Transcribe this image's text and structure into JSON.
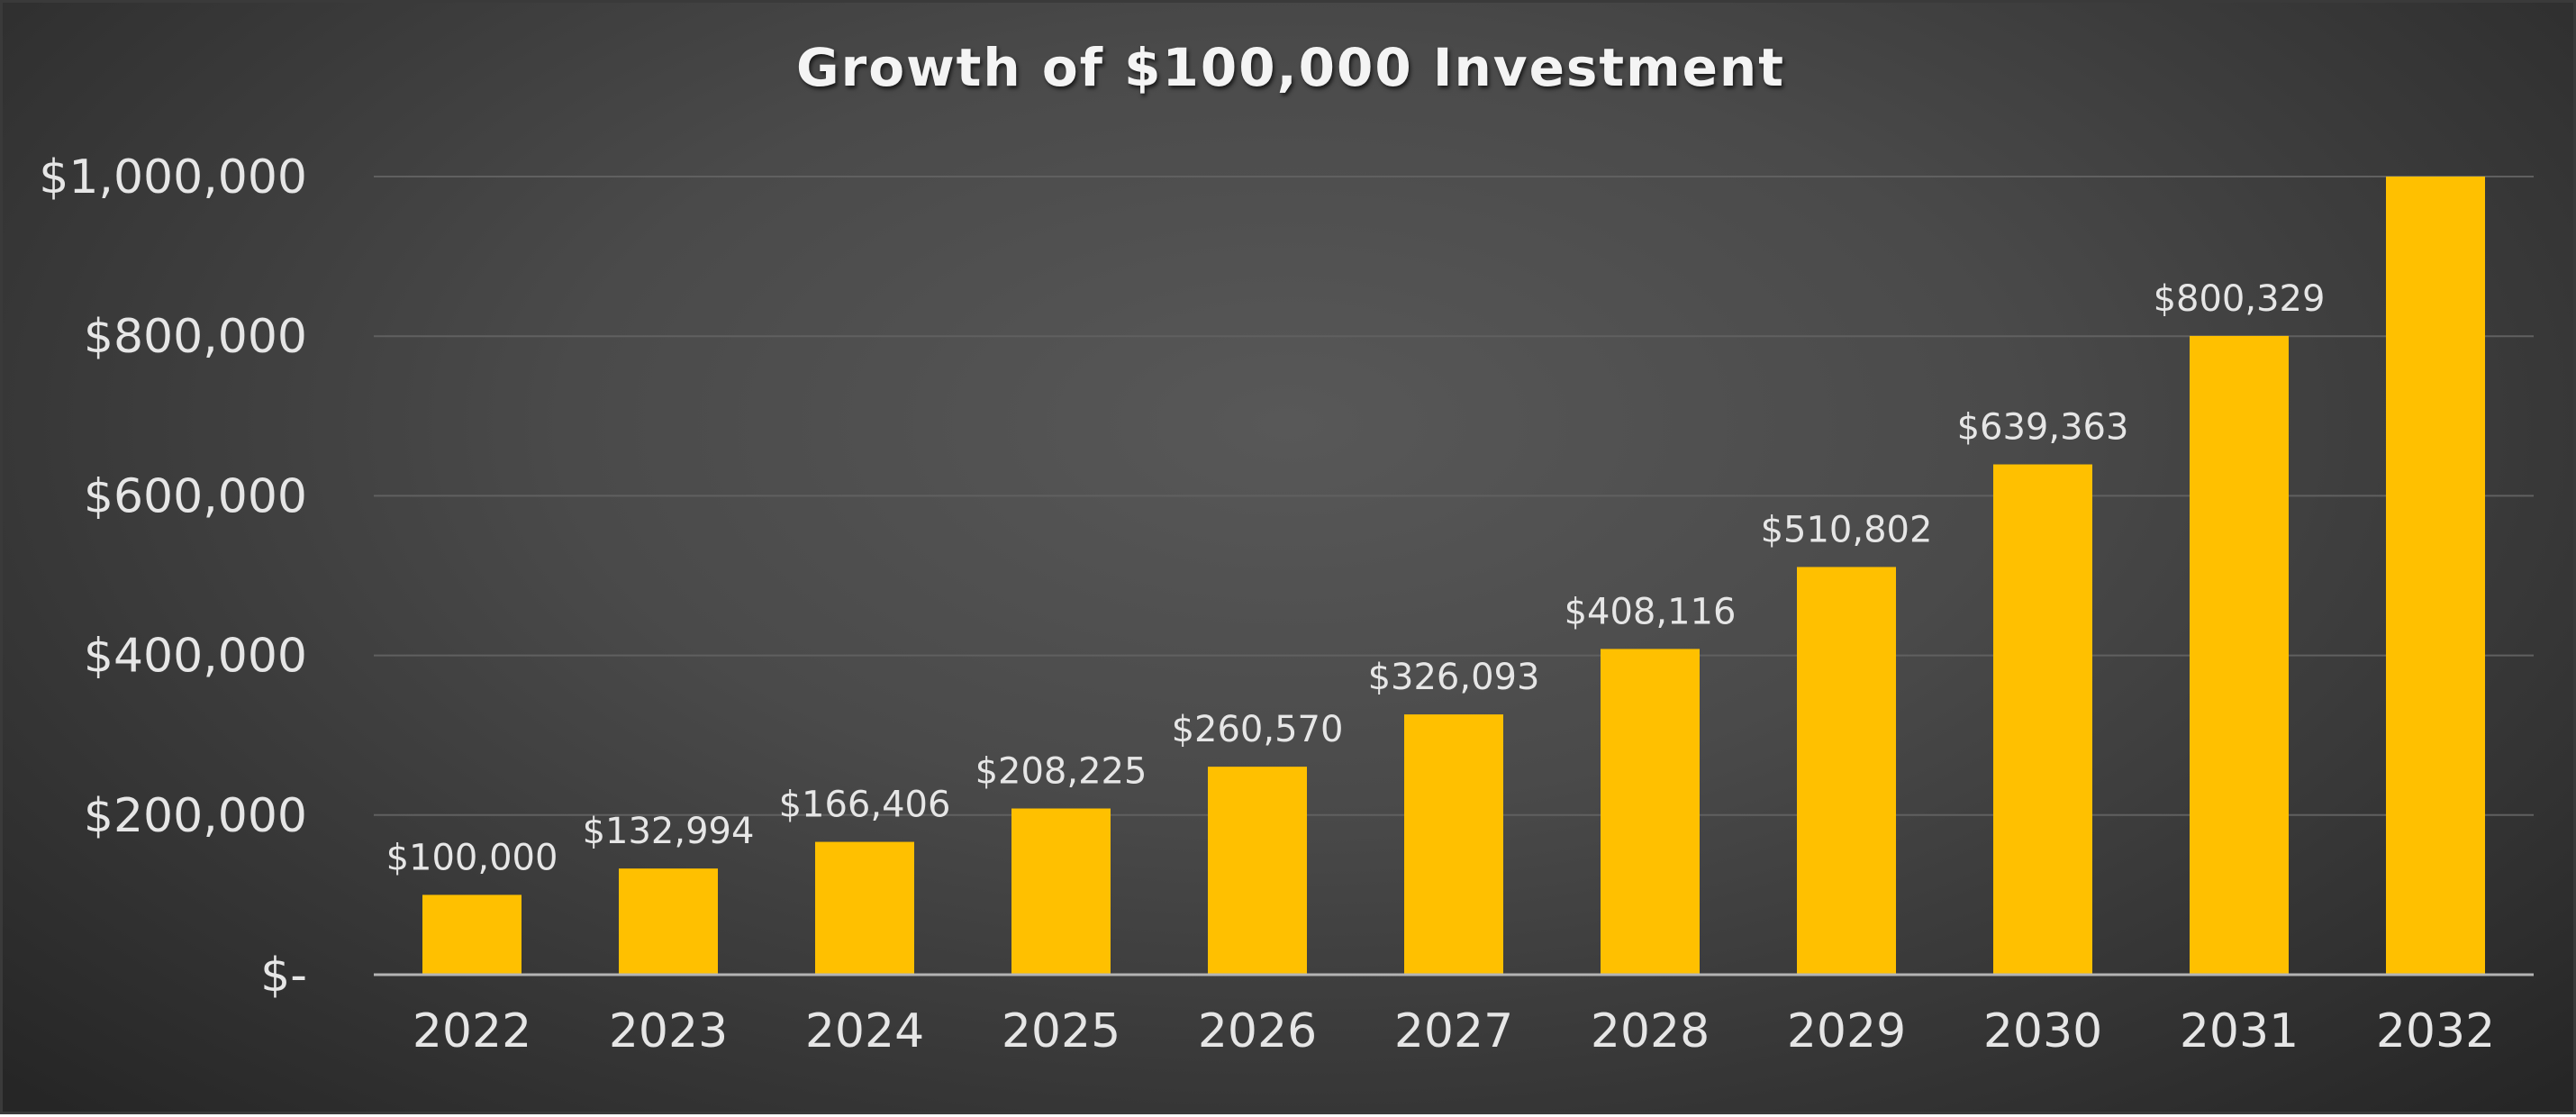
{
  "chart_data": {
    "type": "bar",
    "title": "Growth of $100,000 Investment",
    "xlabel": "",
    "ylabel": "",
    "categories": [
      "2022",
      "2023",
      "2024",
      "2025",
      "2026",
      "2027",
      "2028",
      "2029",
      "2030",
      "2031",
      "2032"
    ],
    "values": [
      100000,
      132994,
      166406,
      208225,
      260570,
      326093,
      408116,
      510802,
      639363,
      800329,
      1000000
    ],
    "data_labels": [
      "$100,000",
      "$132,994",
      "$166,406",
      "$208,225",
      "$260,570",
      "$326,093",
      "$408,116",
      "$510,802",
      "$639,363",
      "$800,329",
      ""
    ],
    "yticks": [
      0,
      200000,
      400000,
      600000,
      800000,
      1000000
    ],
    "ytick_labels": [
      "$-",
      "$200,000",
      "$400,000",
      "$600,000",
      "$800,000",
      "$1,000,000"
    ],
    "ylim": [
      0,
      1000000
    ],
    "grid": true,
    "legend": "none",
    "colors": {
      "bar": "#ffc000",
      "background": "#4a4a4a",
      "text": "#e6e6e6",
      "title": "#f4f4f4",
      "grid": "#606060",
      "axis": "#b4b4b4"
    }
  }
}
